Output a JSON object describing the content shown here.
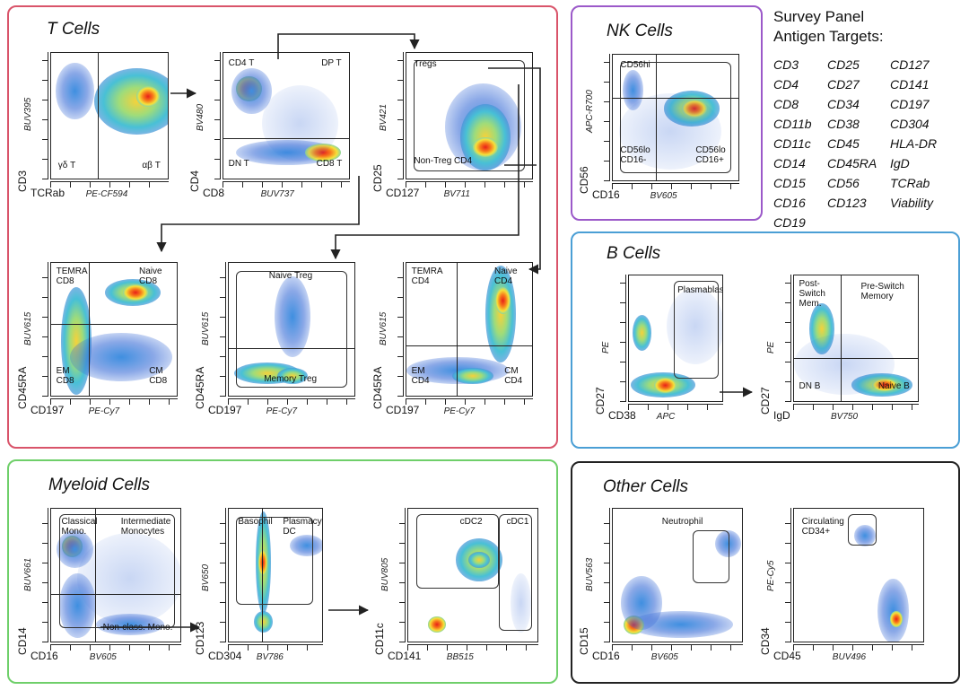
{
  "colors": {
    "tcells": "#d9546a",
    "nk": "#9b59c9",
    "bcells": "#4b9fd5",
    "myeloid": "#6fcf6a",
    "other": "#222222"
  },
  "titles": {
    "tcells": "T Cells",
    "nk": "NK Cells",
    "bcells": "B Cells",
    "myeloid": "Myeloid Cells",
    "other": "Other Cells"
  },
  "survey": {
    "heading1": "Survey Panel",
    "heading2": "Antigen Targets:",
    "col1": [
      "CD3",
      "CD4",
      "CD8",
      "CD11b",
      "CD11c",
      "CD14",
      "CD15",
      "CD16",
      "CD19"
    ],
    "col2": [
      "CD25",
      "CD27",
      "CD34",
      "CD38",
      "CD45",
      "CD45RA",
      "CD56",
      "CD123"
    ],
    "col3": [
      "CD127",
      "CD141",
      "CD197",
      "CD304",
      "HLA-DR",
      "IgD",
      "TCRab",
      "Viability"
    ]
  },
  "plots": {
    "t1": {
      "x": "TCRab",
      "xs": "PE-CF594",
      "y": "CD3",
      "ys": "BUV395",
      "g": [
        "γδ T",
        "αβ T"
      ]
    },
    "t2": {
      "x": "CD8",
      "xs": "BUV737",
      "y": "CD4",
      "ys": "BV480",
      "g": [
        "CD4 T",
        "DP T",
        "DN T",
        "CD8 T"
      ]
    },
    "t3": {
      "x": "CD127",
      "xs": "BV711",
      "y": "CD25",
      "ys": "BV421",
      "g": [
        "Tregs",
        "Non-Treg CD4"
      ]
    },
    "t4": {
      "x": "CD197",
      "xs": "PE-Cy7",
      "y": "CD45RA",
      "ys": "BUV615",
      "g": [
        "TEMRA\nCD8",
        "Naive\nCD8",
        "EM\nCD8",
        "CM\nCD8"
      ]
    },
    "t5": {
      "x": "CD197",
      "xs": "PE-Cy7",
      "y": "CD45RA",
      "ys": "BUV615",
      "g": [
        "Naive Treg",
        "Memory Treg"
      ]
    },
    "t6": {
      "x": "CD197",
      "xs": "PE-Cy7",
      "y": "CD45RA",
      "ys": "BUV615",
      "g": [
        "TEMRA\nCD4",
        "Naive\nCD4",
        "EM\nCD4",
        "CM\nCD4"
      ]
    },
    "nk": {
      "x": "CD16",
      "xs": "BV605",
      "y": "CD56",
      "ys": "APC-R700",
      "g": [
        "CD56hi",
        "CD56lo\nCD16-",
        "CD56lo\nCD16+"
      ]
    },
    "b1": {
      "x": "CD38",
      "xs": "APC",
      "y": "CD27",
      "ys": "PE",
      "g": [
        "Plasmablasts"
      ]
    },
    "b2": {
      "x": "IgD",
      "xs": "BV750",
      "y": "CD27",
      "ys": "PE",
      "g": [
        "Post-\nSwitch\nMem.",
        "Pre-Switch\nMemory",
        "DN B",
        "Naive B"
      ]
    },
    "m1": {
      "x": "CD16",
      "xs": "BV605",
      "y": "CD14",
      "ys": "BUV661",
      "g": [
        "Classical\nMono.",
        "Intermediate\nMonocytes",
        "Non-class. Mono."
      ]
    },
    "m2": {
      "x": "CD304",
      "xs": "BV786",
      "y": "CD123",
      "ys": "BV650",
      "g": [
        "Basophil",
        "Plasmacytoid\nDC"
      ]
    },
    "m3": {
      "x": "CD141",
      "xs": "BB515",
      "y": "CD11c",
      "ys": "BUV805",
      "g": [
        "cDC2",
        "cDC1"
      ]
    },
    "o1": {
      "x": "CD16",
      "xs": "BV605",
      "y": "CD15",
      "ys": "BUV563",
      "g": [
        "Neutrophil"
      ]
    },
    "o2": {
      "x": "CD45",
      "xs": "BUV496",
      "y": "CD34",
      "ys": "PE-Cy5",
      "g": [
        "Circulating\nCD34+"
      ]
    }
  }
}
